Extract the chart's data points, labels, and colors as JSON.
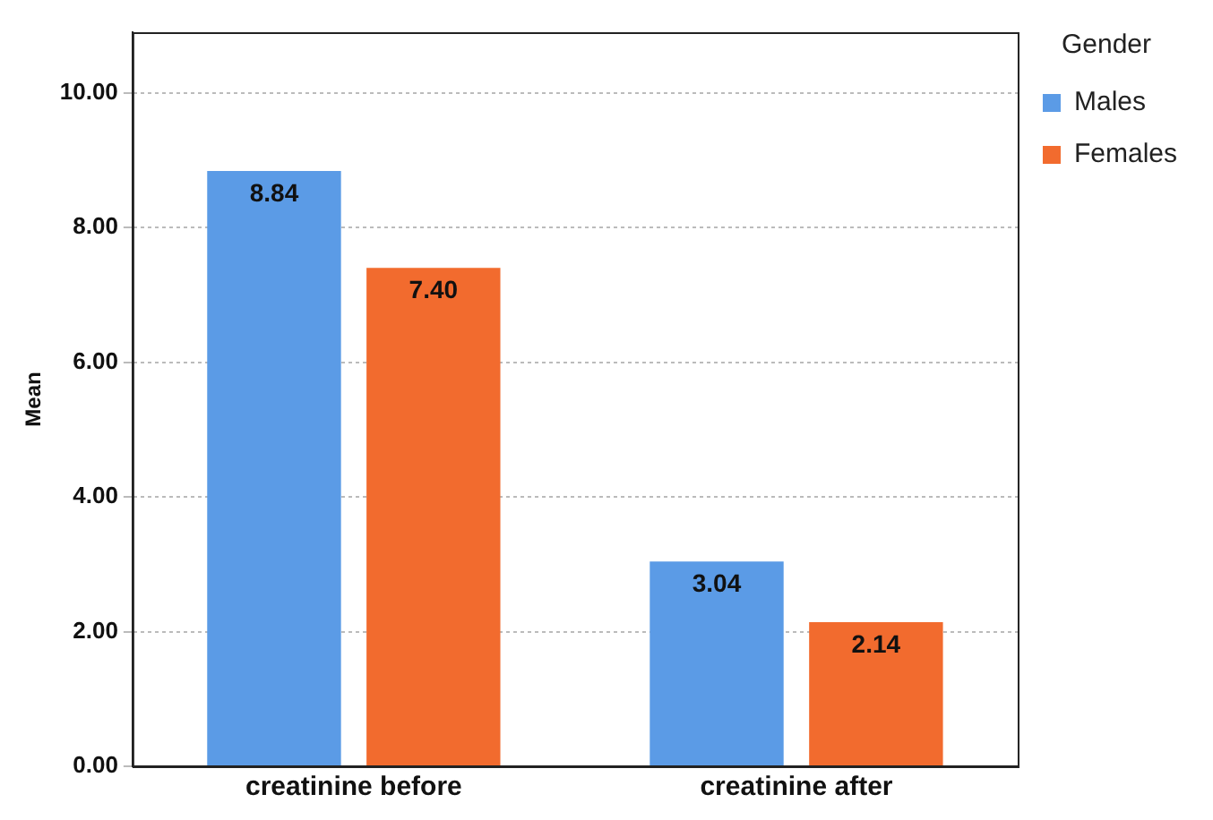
{
  "chart_data": {
    "type": "bar",
    "ylabel": "Mean",
    "legend_title": "Gender",
    "categories": [
      "creatinine before",
      "creatinine after"
    ],
    "series": [
      {
        "name": "Males",
        "color": "#5b9be6",
        "values": [
          8.84,
          3.04
        ],
        "value_labels": [
          "8.84",
          "3.04"
        ]
      },
      {
        "name": "Females",
        "color": "#f26b2e",
        "values": [
          7.4,
          2.14
        ],
        "value_labels": [
          "7.40",
          "2.14"
        ]
      }
    ],
    "ylim": [
      0,
      10.9
    ],
    "yticks": [
      {
        "value": 0,
        "label": "0.00"
      },
      {
        "value": 2,
        "label": "2.00"
      },
      {
        "value": 4,
        "label": "4.00"
      },
      {
        "value": 6,
        "label": "6.00"
      },
      {
        "value": 8,
        "label": "8.00"
      },
      {
        "value": 10,
        "label": "10.00"
      }
    ],
    "grid": "y",
    "legend": "top right"
  }
}
